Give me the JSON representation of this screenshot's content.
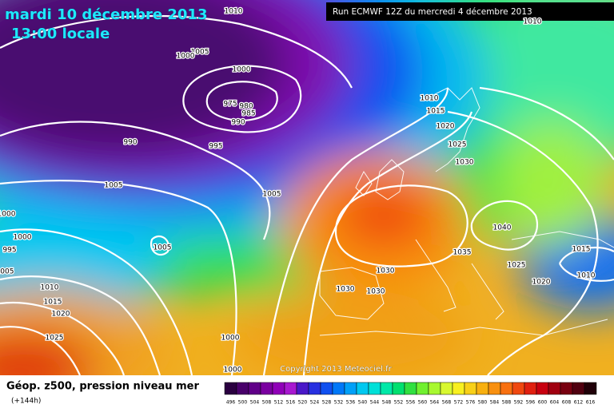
{
  "header": {
    "date": "mardi 10 décembre 2013",
    "time": "13:00 locale",
    "run": "Run ECMWF 12Z du mercredi 4 décembre 2013"
  },
  "copyright": "Copyright 2013 Meteociel.fr",
  "legend": {
    "title": "Géop. z500, pression niveau mer",
    "lead": "(+144h)",
    "scale": {
      "values": [
        496,
        500,
        504,
        508,
        512,
        516,
        520,
        524,
        528,
        532,
        536,
        540,
        544,
        548,
        552,
        556,
        560,
        564,
        568,
        572,
        576,
        580,
        584,
        588,
        592,
        596,
        600,
        604,
        608,
        612,
        616
      ],
      "colors": [
        "#2a0040",
        "#48006a",
        "#600088",
        "#7a00a0",
        "#9000b8",
        "#a818d0",
        "#4a18c8",
        "#2830e0",
        "#1050f0",
        "#0078f8",
        "#00a0f8",
        "#00c8f0",
        "#00e0d8",
        "#00e8a8",
        "#00e070",
        "#30e040",
        "#70f030",
        "#a8f830",
        "#d8f830",
        "#f8f020",
        "#f8d018",
        "#f8b010",
        "#f89010",
        "#f87010",
        "#f04810",
        "#e02010",
        "#c80010",
        "#a00010",
        "#780010",
        "#500010",
        "#200008"
      ]
    }
  },
  "isobar_labels": [
    1010,
    1010,
    1005,
    1000,
    1000,
    975,
    980,
    985,
    990,
    990,
    995,
    1010,
    1015,
    1020,
    1025,
    1030,
    1005,
    1005,
    1000,
    1000,
    995,
    1005,
    1005,
    1040,
    1035,
    1025,
    1030,
    1030,
    1030,
    1020,
    1015,
    1010,
    1010,
    1015,
    1020,
    1025,
    1000,
    1000
  ]
}
